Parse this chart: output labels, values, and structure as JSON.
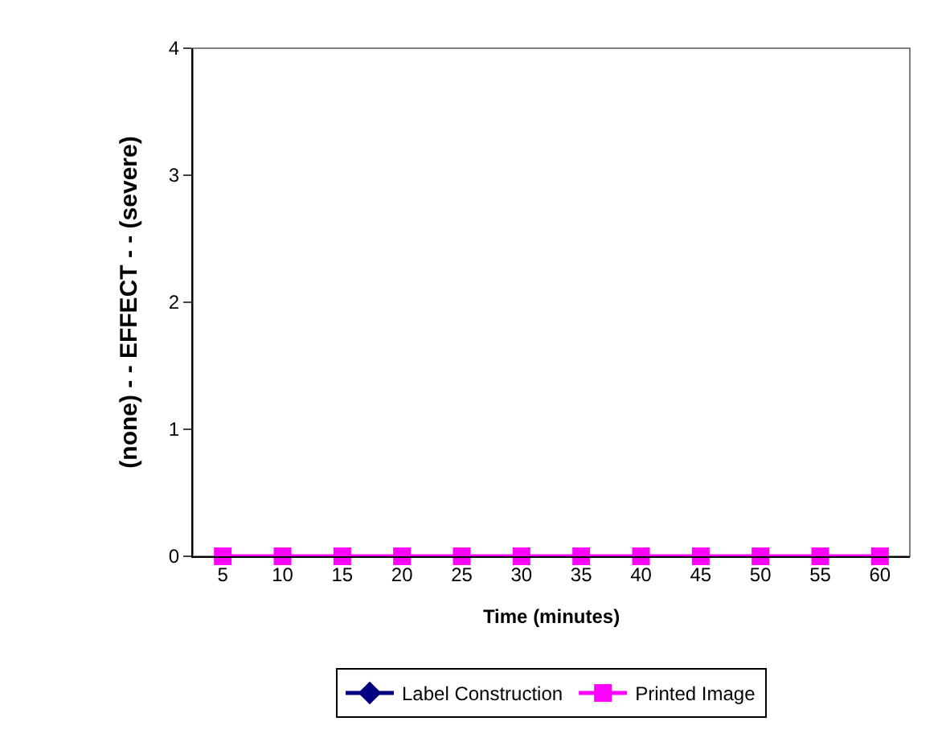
{
  "chart_data": {
    "type": "line",
    "xlabel": "Time (minutes)",
    "ylabel": "(none) - - EFFECT - - (severe)",
    "categories": [
      "5",
      "10",
      "15",
      "20",
      "25",
      "30",
      "35",
      "40",
      "45",
      "50",
      "55",
      "60"
    ],
    "series": [
      {
        "name": "Label Construction",
        "color": "#000080",
        "marker": "diamond",
        "values": [
          null,
          null,
          null,
          null,
          null,
          null,
          null,
          null,
          null,
          null,
          null,
          null
        ]
      },
      {
        "name": "Printed Image",
        "color": "#ff00ff",
        "marker": "square",
        "values": [
          0,
          0,
          0,
          0,
          0,
          0,
          0,
          0,
          0,
          0,
          0,
          0
        ]
      }
    ],
    "ylim": [
      0,
      4
    ],
    "yticks": [
      0,
      1,
      2,
      3,
      4
    ],
    "grid": false,
    "legend": "bottom",
    "line_style": "solid"
  }
}
